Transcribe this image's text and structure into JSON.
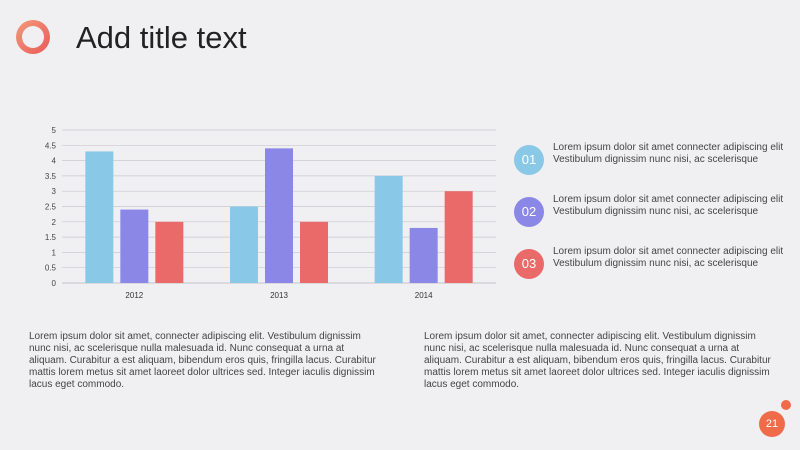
{
  "slide": {
    "title": "Add title text",
    "page_number": "21"
  },
  "colors": {
    "series_1": "#8ac8e8",
    "series_2": "#8b87e6",
    "series_3": "#ea6a6a",
    "accent": "#f06b4a"
  },
  "chart_data": {
    "type": "bar",
    "categories": [
      "2012",
      "2013",
      "2014"
    ],
    "series": [
      {
        "values": [
          4.3,
          2.5,
          3.5
        ],
        "color": "#8ac8e8"
      },
      {
        "values": [
          2.4,
          4.4,
          1.8
        ],
        "color": "#8b87e6"
      },
      {
        "values": [
          2.0,
          2.0,
          3.0
        ],
        "color": "#ea6a6a"
      }
    ],
    "yticks": [
      "0",
      "0.5",
      "1",
      "1.5",
      "2",
      "2.5",
      "3",
      "3.5",
      "4",
      "4.5",
      "5"
    ],
    "ylim": [
      0,
      5
    ],
    "grid": true,
    "legend": "none",
    "title": "",
    "xlabel": "",
    "ylabel": ""
  },
  "list": {
    "items": [
      {
        "number": "01",
        "text": "Lorem ipsum dolor sit amet connecter adipiscing elit Vestibulum dignissim nunc nisi, ac scelerisque",
        "color": "#8ac8e8"
      },
      {
        "number": "02",
        "text": "Lorem ipsum dolor sit amet connecter adipiscing elit Vestibulum dignissim nunc nisi, ac scelerisque",
        "color": "#8b87e6"
      },
      {
        "number": "03",
        "text": "Lorem ipsum dolor sit amet connecter adipiscing elit Vestibulum dignissim nunc nisi, ac scelerisque",
        "color": "#ea6a6a"
      }
    ]
  },
  "paragraphs": {
    "left": "Lorem ipsum dolor sit amet, connecter adipiscing elit. Vestibulum dignissim nunc nisi, ac scelerisque nulla malesuada id. Nunc consequat a urna at aliquam. Curabitur a est aliquam, bibendum eros quis, fringilla lacus. Curabitur mattis lorem metus sit amet laoreet dolor ultrices sed. Integer iaculis dignissim lacus eget commodo.",
    "right": "Lorem ipsum dolor sit amet, connecter adipiscing elit. Vestibulum dignissim nunc nisi, ac scelerisque nulla malesuada id. Nunc consequat a urna at aliquam. Curabitur a est aliquam, bibendum eros quis, fringilla lacus. Curabitur mattis lorem metus sit amet laoreet dolor ultrices sed. Integer iaculis dignissim lacus eget commodo."
  }
}
